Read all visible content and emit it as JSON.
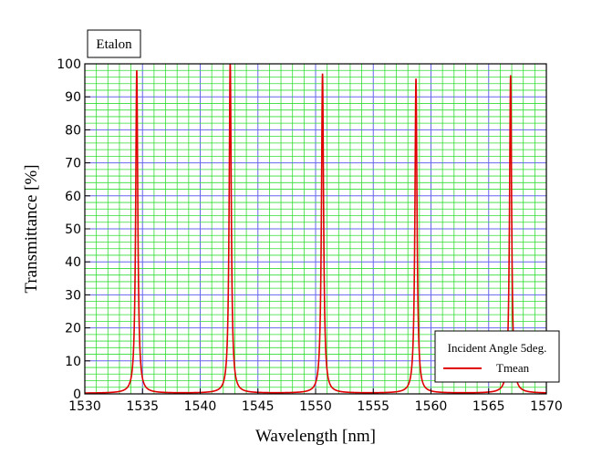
{
  "chart_data": {
    "type": "line",
    "title_box": "Etalon",
    "xlabel": "Wavelength [nm]",
    "ylabel": "Transmittance [%]",
    "xlim": [
      1530,
      1570
    ],
    "ylim": [
      0,
      100
    ],
    "x_ticks": [
      "1530",
      "1535",
      "1540",
      "1545",
      "1550",
      "1555",
      "1560",
      "1565",
      "1570"
    ],
    "y_ticks": [
      "0",
      "10",
      "20",
      "30",
      "40",
      "50",
      "60",
      "70",
      "80",
      "90",
      "100"
    ],
    "grid": true,
    "legend": {
      "title": "Incident Angle 5deg.",
      "placement": "bottom-right",
      "entries": [
        {
          "label": "Tmean",
          "color": "#e00000"
        }
      ]
    },
    "series": [
      {
        "name": "Tmean",
        "color": "#e00000",
        "peaks": [
          {
            "x": 1534.5,
            "y": 98
          },
          {
            "x": 1542.6,
            "y": 100
          },
          {
            "x": 1550.6,
            "y": 97
          },
          {
            "x": 1558.7,
            "y": 95.5
          },
          {
            "x": 1566.9,
            "y": 96.5
          }
        ],
        "baseline": 0.2
      }
    ]
  },
  "colors": {
    "minor_grid": "#33dd33",
    "major_grid": "#6666ee",
    "line": "#e00000",
    "plot_bg": "#ffffff"
  }
}
